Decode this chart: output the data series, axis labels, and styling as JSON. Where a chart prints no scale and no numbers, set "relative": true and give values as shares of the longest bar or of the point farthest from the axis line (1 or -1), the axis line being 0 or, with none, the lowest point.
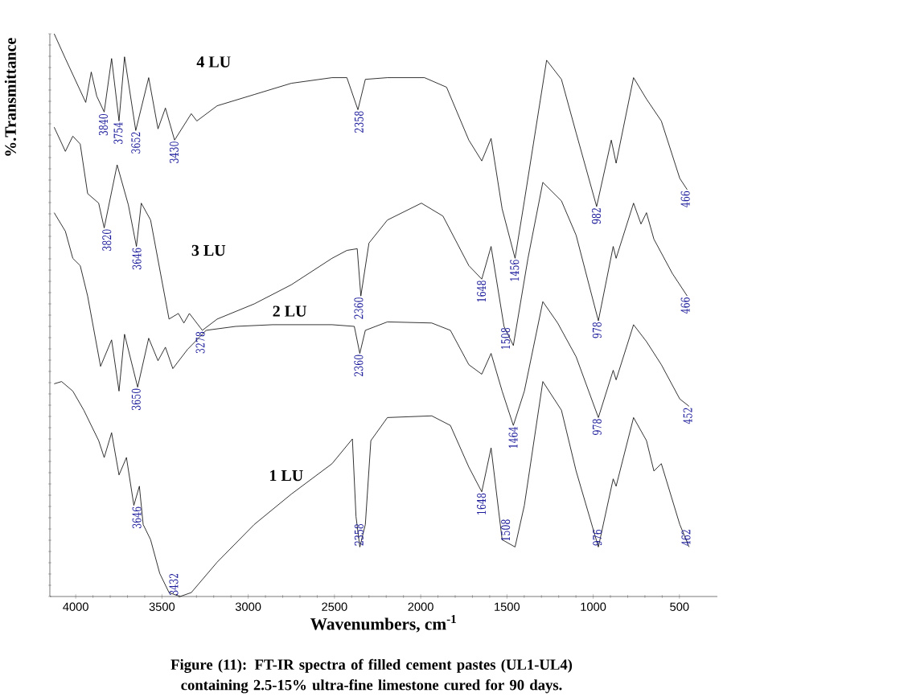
{
  "chart_data": {
    "type": "line",
    "relative": true,
    "xlabel": "Wavenumbers, cm$^{-1}$",
    "ylabel": "%.Transmittance",
    "xlim": [
      4150,
      280
    ],
    "xticks": [
      4000,
      3500,
      3000,
      2500,
      2000,
      1500,
      1000,
      500
    ],
    "grid": false,
    "legend": false,
    "marker": "none",
    "line_style": "solid",
    "series": [
      {
        "name": "4 LU",
        "color": "#000000",
        "x": [
          4125,
          4060,
          3942,
          3910,
          3878,
          3835,
          3792,
          3749,
          3717,
          3652,
          3577,
          3523,
          3480,
          3427,
          3330,
          3298,
          3180,
          2965,
          2750,
          2514,
          2428,
          2364,
          2321,
          2193,
          1978,
          1850,
          1721,
          1646,
          1592,
          1528,
          1453,
          1399,
          1270,
          1184,
          1099,
          980,
          895,
          867,
          766,
          691,
          605,
          498,
          455
        ],
        "values": [
          1.0,
          0.956,
          0.878,
          0.932,
          0.889,
          0.861,
          0.956,
          0.845,
          0.959,
          0.828,
          0.922,
          0.831,
          0.868,
          0.811,
          0.858,
          0.845,
          0.872,
          0.892,
          0.912,
          0.922,
          0.922,
          0.865,
          0.919,
          0.922,
          0.922,
          0.905,
          0.811,
          0.774,
          0.814,
          0.689,
          0.601,
          0.703,
          0.953,
          0.919,
          0.824,
          0.693,
          0.811,
          0.77,
          0.922,
          0.884,
          0.845,
          0.743,
          0.723
        ]
      },
      {
        "name": "3 LU",
        "color": "#000000",
        "x": [
          4125,
          4060,
          4017,
          3974,
          3931,
          3867,
          3835,
          3760,
          3695,
          3648,
          3620,
          3566,
          3459,
          3405,
          3373,
          3341,
          3266,
          3180,
          2965,
          2750,
          2514,
          2428,
          2368,
          2347,
          2300,
          2193,
          1996,
          1871,
          1721,
          1646,
          1592,
          1517,
          1463,
          1378,
          1292,
          1184,
          1099,
          970,
          884,
          867,
          766,
          723,
          691,
          648,
          541,
          455
        ],
        "values": [
          0.834,
          0.791,
          0.818,
          0.804,
          0.716,
          0.699,
          0.655,
          0.767,
          0.696,
          0.622,
          0.699,
          0.669,
          0.493,
          0.503,
          0.486,
          0.503,
          0.473,
          0.493,
          0.52,
          0.554,
          0.601,
          0.615,
          0.618,
          0.534,
          0.628,
          0.669,
          0.699,
          0.676,
          0.588,
          0.564,
          0.622,
          0.48,
          0.446,
          0.601,
          0.736,
          0.703,
          0.642,
          0.49,
          0.622,
          0.601,
          0.699,
          0.662,
          0.682,
          0.635,
          0.574,
          0.534
        ]
      },
      {
        "name": "2 LU",
        "color": "#000000",
        "x": [
          4125,
          4060,
          4017,
          3974,
          3931,
          3856,
          3792,
          3749,
          3717,
          3641,
          3577,
          3523,
          3480,
          3437,
          3352,
          3244,
          3072,
          2858,
          2514,
          2385,
          2353,
          2321,
          2193,
          1936,
          1828,
          1721,
          1646,
          1592,
          1528,
          1463,
          1399,
          1292,
          1206,
          1099,
          970,
          884,
          867,
          766,
          691,
          605,
          498,
          444
        ],
        "values": [
          0.682,
          0.649,
          0.601,
          0.588,
          0.534,
          0.409,
          0.456,
          0.365,
          0.466,
          0.372,
          0.459,
          0.419,
          0.443,
          0.405,
          0.439,
          0.473,
          0.48,
          0.483,
          0.483,
          0.48,
          0.432,
          0.473,
          0.488,
          0.486,
          0.473,
          0.412,
          0.395,
          0.432,
          0.365,
          0.304,
          0.365,
          0.524,
          0.486,
          0.426,
          0.318,
          0.402,
          0.385,
          0.483,
          0.453,
          0.412,
          0.351,
          0.338
        ]
      },
      {
        "name": "1 LU",
        "color": "#000000",
        "x": [
          4125,
          4082,
          4017,
          3953,
          3867,
          3835,
          3792,
          3749,
          3706,
          3663,
          3631,
          3609,
          3566,
          3513,
          3459,
          3395,
          3330,
          3180,
          2965,
          2750,
          2514,
          2396,
          2375,
          2353,
          2321,
          2289,
          2193,
          1936,
          1828,
          1721,
          1646,
          1592,
          1528,
          1453,
          1399,
          1292,
          1184,
          1099,
          970,
          884,
          867,
          766,
          691,
          648,
          605,
          498,
          444
        ],
        "values": [
          0.378,
          0.382,
          0.365,
          0.331,
          0.277,
          0.247,
          0.291,
          0.216,
          0.247,
          0.162,
          0.196,
          0.128,
          0.101,
          0.041,
          0.007,
          0.0,
          0.007,
          0.061,
          0.128,
          0.182,
          0.236,
          0.28,
          0.142,
          0.088,
          0.128,
          0.277,
          0.318,
          0.321,
          0.304,
          0.23,
          0.186,
          0.264,
          0.101,
          0.088,
          0.162,
          0.382,
          0.331,
          0.223,
          0.088,
          0.209,
          0.196,
          0.318,
          0.277,
          0.223,
          0.236,
          0.128,
          0.088
        ]
      }
    ],
    "annotations": [
      {
        "text": "3840",
        "x": 3840,
        "y": 0.86
      },
      {
        "text": "3754",
        "x": 3754,
        "y": 0.845
      },
      {
        "text": "3652",
        "x": 3652,
        "y": 0.828
      },
      {
        "text": "3430",
        "x": 3430,
        "y": 0.811
      },
      {
        "text": "2358",
        "x": 2358,
        "y": 0.865
      },
      {
        "text": "1456",
        "x": 1456,
        "y": 0.601
      },
      {
        "text": "982",
        "x": 982,
        "y": 0.693
      },
      {
        "text": "466",
        "x": 466,
        "y": 0.723
      },
      {
        "text": "3820",
        "x": 3820,
        "y": 0.655
      },
      {
        "text": "3646",
        "x": 3646,
        "y": 0.622
      },
      {
        "text": "3278",
        "x": 3278,
        "y": 0.473
      },
      {
        "text": "2360",
        "x": 2360,
        "y": 0.534
      },
      {
        "text": "1648",
        "x": 1648,
        "y": 0.564
      },
      {
        "text": "1508",
        "x": 1508,
        "y": 0.48
      },
      {
        "text": "978",
        "x": 978,
        "y": 0.49
      },
      {
        "text": "466",
        "x": 466,
        "y": 0.534
      },
      {
        "text": "3650",
        "x": 3650,
        "y": 0.372
      },
      {
        "text": "2360",
        "x": 2360,
        "y": 0.432
      },
      {
        "text": "1464",
        "x": 1464,
        "y": 0.304
      },
      {
        "text": "978",
        "x": 978,
        "y": 0.318
      },
      {
        "text": "452",
        "x": 452,
        "y": 0.338
      },
      {
        "text": "3646",
        "x": 3646,
        "y": 0.162
      },
      {
        "text": "3432",
        "x": 3432,
        "y": 0.0
      },
      {
        "text": "2358",
        "x": 2358,
        "y": 0.088
      },
      {
        "text": "1648",
        "x": 1648,
        "y": 0.186
      },
      {
        "text": "1508",
        "x": 1508,
        "y": 0.096
      },
      {
        "text": "976",
        "x": 976,
        "y": 0.088
      },
      {
        "text": "462",
        "x": 462,
        "y": 0.088
      },
      "Figure (11): FT-IR spectra of filled cement pastes (UL1-UL4) containing 2.5-15% ultra-fine limestone cured for 90 days."
    ]
  }
}
